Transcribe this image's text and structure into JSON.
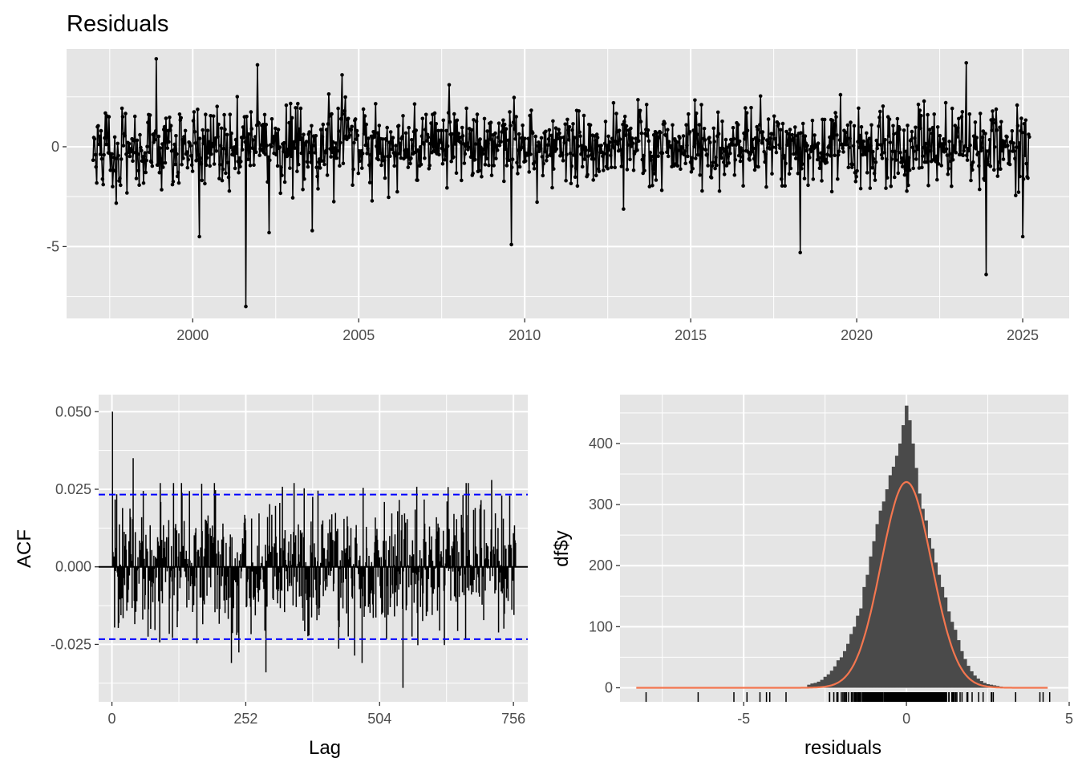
{
  "title": "Residuals",
  "colors": {
    "panel_bg": "#e5e5e5",
    "grid": "#ffffff",
    "line": "#000000",
    "confidence_band": "#0000ff",
    "histogram_bar": "#4a4a4a",
    "density_curve": "#f4764f"
  },
  "chart_data": [
    {
      "type": "line",
      "name": "residuals-time-series",
      "xlim": [
        1996.2,
        2026.4
      ],
      "ylim": [
        -8.6,
        4.9
      ],
      "x_ticks": [
        2000,
        2005,
        2010,
        2015,
        2020,
        2025
      ],
      "x_tick_labels": [
        "2000",
        "2005",
        "2010",
        "2015",
        "2020",
        "2025"
      ],
      "y_ticks": [
        0,
        -5
      ],
      "y_tick_labels": [
        "0",
        "-5"
      ],
      "x_range_data": [
        1997.0,
        2025.2
      ],
      "notable_points": [
        {
          "x": 1998.9,
          "y": 4.4
        },
        {
          "x": 2001.6,
          "y": -8.0
        },
        {
          "x": 2001.95,
          "y": 4.1
        },
        {
          "x": 2002.3,
          "y": -4.3
        },
        {
          "x": 2003.6,
          "y": -4.2
        },
        {
          "x": 2004.5,
          "y": 3.6
        },
        {
          "x": 2000.2,
          "y": -4.5
        },
        {
          "x": 2009.6,
          "y": -4.9
        },
        {
          "x": 2018.3,
          "y": -5.3
        },
        {
          "x": 2023.3,
          "y": 4.2
        },
        {
          "x": 2023.9,
          "y": -6.4
        },
        {
          "x": 2025.0,
          "y": -4.5
        }
      ],
      "grid": true
    },
    {
      "type": "bar",
      "name": "acf",
      "xlabel": "Lag",
      "ylabel": "ACF",
      "xlim": [
        -25,
        783
      ],
      "ylim": [
        -0.0435,
        0.0555
      ],
      "x_ticks": [
        0,
        252,
        504,
        756
      ],
      "x_tick_labels": [
        "0",
        "252",
        "504",
        "756"
      ],
      "y_ticks": [
        0.05,
        0.025,
        0.0,
        -0.025
      ],
      "y_tick_labels": [
        "0.050",
        "0.025",
        "0.000",
        "-0.025"
      ],
      "confidence_limits": [
        0.0233,
        -0.0233
      ],
      "max_lag": 760,
      "notable_lags": [
        {
          "lag": 1,
          "acf": 0.05
        },
        {
          "lag": 40,
          "acf": 0.035
        },
        {
          "lag": 290,
          "acf": -0.034
        },
        {
          "lag": 548,
          "acf": -0.039
        },
        {
          "lag": 715,
          "acf": 0.028
        }
      ],
      "grid": true
    },
    {
      "type": "bar",
      "name": "residual-histogram",
      "xlabel": "residuals",
      "ylabel": "df$y",
      "xlim": [
        -8.8,
        5.0
      ],
      "ylim": [
        -23,
        480
      ],
      "x_ticks": [
        -5,
        0,
        5
      ],
      "x_tick_labels": [
        "-5",
        "0",
        "5"
      ],
      "y_ticks": [
        0,
        100,
        200,
        300,
        400
      ],
      "y_tick_labels": [
        "0",
        "100",
        "200",
        "300",
        "400"
      ],
      "bin_width": 0.1,
      "curve_peak": 337,
      "x": [
        -3.0,
        -2.9,
        -2.8,
        -2.7,
        -2.6,
        -2.5,
        -2.4,
        -2.3,
        -2.2,
        -2.1,
        -2.0,
        -1.9,
        -1.8,
        -1.7,
        -1.6,
        -1.5,
        -1.4,
        -1.3,
        -1.2,
        -1.1,
        -1.0,
        -0.9,
        -0.8,
        -0.7,
        -0.6,
        -0.5,
        -0.4,
        -0.3,
        -0.2,
        -0.1,
        0.0,
        0.1,
        0.2,
        0.3,
        0.4,
        0.5,
        0.6,
        0.7,
        0.8,
        0.9,
        1.0,
        1.1,
        1.2,
        1.3,
        1.4,
        1.5,
        1.6,
        1.7,
        1.8,
        1.9,
        2.0,
        2.1,
        2.2,
        2.3,
        2.4,
        2.5,
        2.6,
        2.7,
        2.8,
        2.9,
        3.0
      ],
      "values": [
        5,
        7,
        8,
        10,
        13,
        18,
        22,
        28,
        35,
        45,
        50,
        60,
        72,
        88,
        100,
        118,
        130,
        165,
        185,
        215,
        240,
        268,
        290,
        305,
        325,
        348,
        362,
        380,
        400,
        430,
        462,
        438,
        400,
        360,
        318,
        293,
        274,
        245,
        228,
        205,
        185,
        165,
        148,
        125,
        108,
        95,
        78,
        60,
        47,
        36,
        27,
        20,
        15,
        11,
        8,
        6,
        5,
        4,
        3,
        2,
        1
      ],
      "grid": true
    }
  ]
}
